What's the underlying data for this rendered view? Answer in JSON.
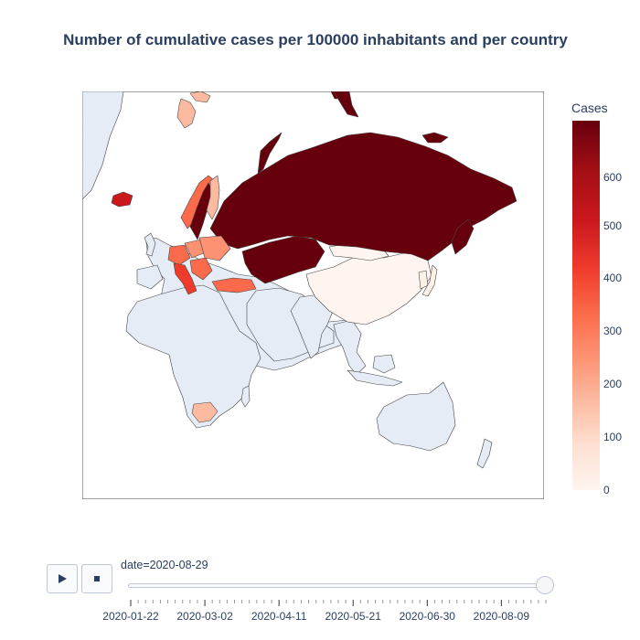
{
  "title": "Number of cumulative cases per 100000 inhabitants and per country",
  "colorbar": {
    "title": "Cases",
    "ticks": [
      "600",
      "500",
      "400",
      "300",
      "200",
      "100",
      "0"
    ],
    "scale": [
      "#fff5f0",
      "#fee0d2",
      "#fcbba1",
      "#fc9272",
      "#fb6a4a",
      "#ef3b2c",
      "#cb181d",
      "#a50f15",
      "#67000d"
    ]
  },
  "map": {
    "land_color": "#e5ecf6",
    "ocean_color": "#ffffff",
    "countries": [
      {
        "name": "Russia",
        "color": "#67000d"
      },
      {
        "name": "Kazakhstan",
        "color": "#67000d"
      },
      {
        "name": "Sweden",
        "color": "#67000d"
      },
      {
        "name": "Iceland",
        "color": "#cb181d"
      },
      {
        "name": "Finland",
        "color": "#fcbba1"
      },
      {
        "name": "Svalbard",
        "color": "#fc9272"
      },
      {
        "name": "Turkey",
        "color": "#fb6a4a"
      },
      {
        "name": "Italy",
        "color": "#ef3b2c"
      },
      {
        "name": "China",
        "color": "#fff5f0"
      },
      {
        "name": "Mongolia",
        "color": "#fff5f0"
      },
      {
        "name": "Japan",
        "color": "#fff0e8"
      },
      {
        "name": "South Africa",
        "color": "#fcbba1"
      }
    ]
  },
  "player": {
    "play_icon": "play-icon",
    "stop_icon": "stop-icon",
    "current_label_prefix": "date=",
    "current_value": "2020-08-29",
    "tick_labels": [
      "2020-01-22",
      "2020-03-02",
      "2020-04-11",
      "2020-05-21",
      "2020-06-30",
      "2020-08-09"
    ]
  }
}
